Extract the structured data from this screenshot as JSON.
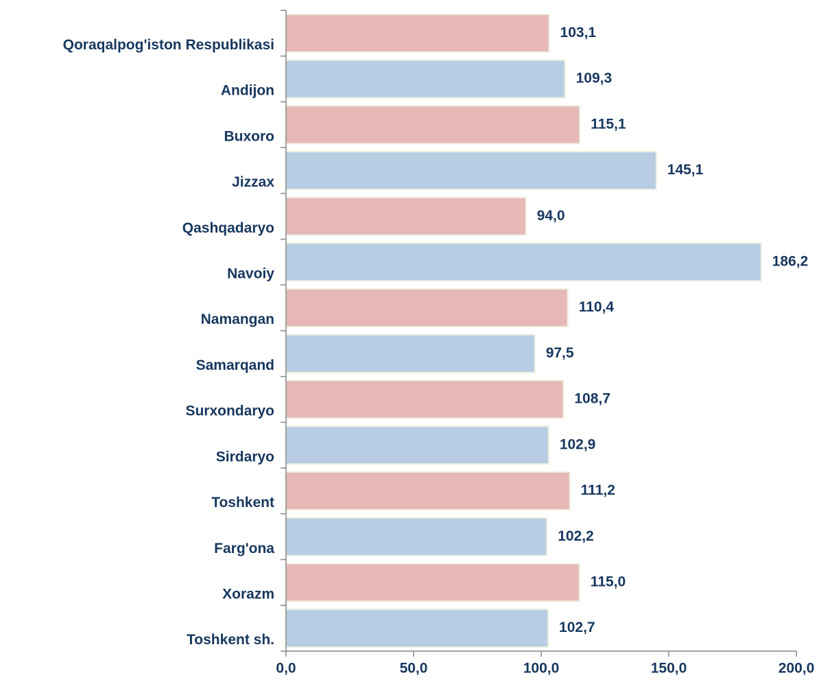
{
  "chart_data": {
    "type": "hbar",
    "categories": [
      "Qoraqalpog'iston Respublikasi",
      "Andijon",
      "Buxoro",
      "Jizzax",
      "Qashqadaryo",
      "Navoiy",
      "Namangan",
      "Samarqand",
      "Surxondaryo",
      "Sirdaryo",
      "Toshkent",
      "Farg'ona",
      "Xorazm",
      "Toshkent sh."
    ],
    "values": [
      103.1,
      109.3,
      115.1,
      145.1,
      94.0,
      186.2,
      110.4,
      97.5,
      108.7,
      102.9,
      111.2,
      102.2,
      115.0,
      102.7
    ],
    "value_labels": [
      "103,1",
      "109,3",
      "115,1",
      "145,1",
      "94,0",
      "186,2",
      "110,4",
      "97,5",
      "108,7",
      "102,9",
      "111,2",
      "102,2",
      "115,0",
      "102,7"
    ],
    "colors": [
      "#e6b8b7",
      "#b8cce4",
      "#e6b8b7",
      "#b8cce4",
      "#e6b8b7",
      "#b8cce4",
      "#e6b8b7",
      "#b8cce4",
      "#e6b8b7",
      "#b8cce4",
      "#e6b8b7",
      "#b8cce4",
      "#e6b8b7",
      "#b8cce4"
    ],
    "xlim": [
      0,
      200
    ],
    "xticks": [
      {
        "value": 0,
        "label": "0,0"
      },
      {
        "value": 50,
        "label": "50,0"
      },
      {
        "value": 100,
        "label": "100,0"
      },
      {
        "value": 150,
        "label": "150,0"
      },
      {
        "value": 200,
        "label": "200,0"
      }
    ],
    "grid": false
  }
}
